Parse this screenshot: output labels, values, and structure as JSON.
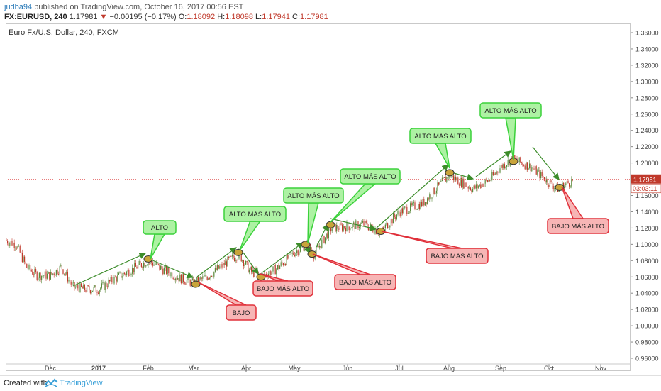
{
  "header": {
    "username": "judba94",
    "published": "published on TradingView.com, October 16, 2017 00:56 EST"
  },
  "quote": {
    "symbol": "FX:EURUSD, 240",
    "last": "1.17981",
    "change": "−0.00195 (−0.17%)",
    "o_label": "O:",
    "o": "1.18092",
    "h_label": "H:",
    "h": "1.18098",
    "l_label": "L:",
    "l": "1.17941",
    "c_label": "C:",
    "c": "1.17981"
  },
  "chart_title": "Euro Fx/U.S. Dollar, 240, FXCM",
  "footer": {
    "created": "Created with",
    "brand": "TradingView"
  },
  "colors": {
    "up": "#5b8a3c",
    "down": "#c0392b",
    "green_box": "#adf2a3",
    "green_border": "#3bd13b",
    "red_box": "#f7b5b5",
    "red_border": "#e0303a",
    "arrow_green": "#3c8c2a",
    "arrow_red": "#d92b2b",
    "price_line": "#e05050",
    "marker": "#c8a43a"
  },
  "chart_data": {
    "type": "line",
    "title": "Euro Fx/U.S. Dollar, 240, FXCM",
    "x_ticks": [
      "Dec",
      "2017",
      "Feb",
      "Mar",
      "Apr",
      "May",
      "Jun",
      "Jul",
      "Aug",
      "Sep",
      "Oct",
      "Nov"
    ],
    "y_ticks": [
      "1.36000",
      "1.34000",
      "1.32000",
      "1.30000",
      "1.28000",
      "1.26000",
      "1.24000",
      "1.22000",
      "1.20000",
      "1.18000",
      "1.16000",
      "1.14000",
      "1.12000",
      "1.10000",
      "1.08000",
      "1.06000",
      "1.04000",
      "1.02000",
      "1.00000",
      "0.98000",
      "0.96000"
    ],
    "ylim": [
      0.955,
      1.37
    ],
    "last_price": "1.17981",
    "countdown": "03:03:11",
    "series": [
      {
        "values": [
          [
            "Nov 1",
            1.105
          ],
          [
            "Nov 8",
            1.1
          ],
          [
            "Nov 15",
            1.072
          ],
          [
            "Nov 22",
            1.062
          ],
          [
            "Dec 1",
            1.062
          ],
          [
            "Dec 8",
            1.072
          ],
          [
            "Dec 15",
            1.048
          ],
          [
            "Dec 22",
            1.045
          ],
          [
            "2017",
            1.045
          ],
          [
            "Jan 11",
            1.058
          ],
          [
            "Jan 20",
            1.068
          ],
          [
            "Feb 1",
            1.08
          ],
          [
            "Feb 10",
            1.07
          ],
          [
            "Feb 20",
            1.06
          ],
          [
            "Mar 1",
            1.052
          ],
          [
            "Mar 10",
            1.062
          ],
          [
            "Mar 20",
            1.078
          ],
          [
            "Mar 27",
            1.088
          ],
          [
            "Apr 3",
            1.068
          ],
          [
            "Apr 10",
            1.06
          ],
          [
            "Apr 20",
            1.07
          ],
          [
            "May 1",
            1.09
          ],
          [
            "May 8",
            1.1
          ],
          [
            "May 12",
            1.088
          ],
          [
            "May 22",
            1.12
          ],
          [
            "Jun 1",
            1.122
          ],
          [
            "Jun 10",
            1.125
          ],
          [
            "Jun 20",
            1.115
          ],
          [
            "Jul 1",
            1.14
          ],
          [
            "Jul 15",
            1.15
          ],
          [
            "Aug 1",
            1.185
          ],
          [
            "Aug 15",
            1.168
          ],
          [
            "Aug 25",
            1.18
          ],
          [
            "Sep 1",
            1.195
          ],
          [
            "Sep 8",
            1.205
          ],
          [
            "Sep 20",
            1.195
          ],
          [
            "Oct 1",
            1.176
          ],
          [
            "Oct 6",
            1.168
          ],
          [
            "Oct 16",
            1.18
          ]
        ]
      }
    ],
    "annotations": [
      {
        "text": "ALTO",
        "kind": "high"
      },
      {
        "text": "BAJO",
        "kind": "low"
      },
      {
        "text": "ALTO MÁS ALTO",
        "kind": "high"
      },
      {
        "text": "BAJO MÁS ALTO",
        "kind": "low"
      },
      {
        "text": "ALTO MÁS ALTO",
        "kind": "high"
      },
      {
        "text": "BAJO MÁS ALTO",
        "kind": "low"
      },
      {
        "text": "ALTO MÁS ALTO",
        "kind": "high"
      },
      {
        "text": "BAJO MÁS ALTO",
        "kind": "low"
      },
      {
        "text": "ALTO MÁS ALTO",
        "kind": "high"
      },
      {
        "text": "ALTO MÁS ALTO",
        "kind": "high"
      },
      {
        "text": "BAJO MÁS ALTO",
        "kind": "low"
      }
    ]
  }
}
